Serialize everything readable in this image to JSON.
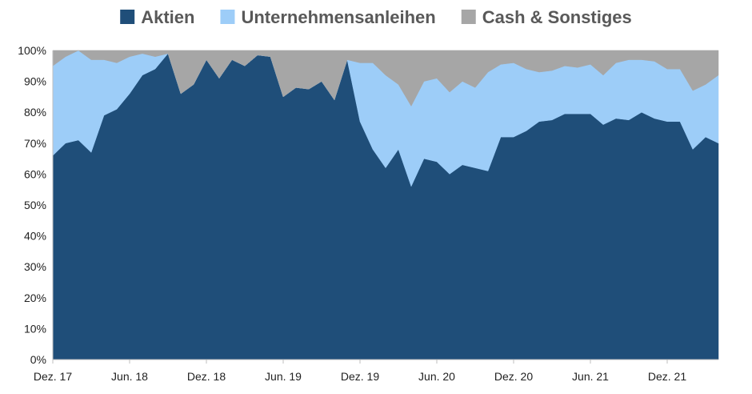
{
  "chart_data": {
    "type": "area",
    "stacked": true,
    "title": "",
    "xlabel": "",
    "ylabel": "",
    "ylim": [
      0,
      100
    ],
    "y_ticks": [
      "0%",
      "10%",
      "20%",
      "30%",
      "40%",
      "50%",
      "60%",
      "70%",
      "80%",
      "90%",
      "100%"
    ],
    "x_ticks": [
      {
        "label": "Dez. 17",
        "index": 0
      },
      {
        "label": "Jun. 18",
        "index": 6
      },
      {
        "label": "Dez. 18",
        "index": 12
      },
      {
        "label": "Jun. 19",
        "index": 18
      },
      {
        "label": "Dez. 19",
        "index": 24
      },
      {
        "label": "Jun. 20",
        "index": 30
      },
      {
        "label": "Dez. 20",
        "index": 36
      },
      {
        "label": "Jun. 21",
        "index": 42
      },
      {
        "label": "Dez. 21",
        "index": 48
      }
    ],
    "legend_position": "top",
    "series": [
      {
        "name": "Aktien",
        "color": "#1f4e79",
        "values": [
          66,
          70,
          71,
          67,
          79,
          81,
          86,
          92,
          94,
          99,
          86,
          89,
          97,
          91,
          97,
          95,
          98.5,
          98,
          85,
          88,
          87.5,
          90,
          84,
          97,
          77,
          68,
          62,
          68,
          56,
          65,
          64,
          60,
          63,
          62,
          61,
          72,
          72,
          74,
          77,
          77.5,
          79.5,
          79.5,
          79.5,
          76,
          78,
          77.5,
          80,
          78,
          77,
          77,
          68,
          72,
          70
        ]
      },
      {
        "name": "Unternehmensanleihen",
        "color": "#9dcdf8",
        "values": [
          29,
          28,
          29,
          30,
          18,
          15,
          12,
          7,
          4,
          0,
          0,
          0,
          0,
          0,
          0,
          0,
          0,
          0,
          0,
          0,
          0,
          0,
          0,
          0,
          19,
          28,
          30,
          21,
          26,
          25,
          27,
          26.5,
          27,
          26,
          32,
          23.5,
          24,
          20,
          16,
          16,
          15.5,
          15,
          16,
          16,
          18,
          19.5,
          17,
          18.5,
          17,
          17,
          19,
          17,
          22
        ]
      },
      {
        "name": "Cash & Sonstiges",
        "color": "#a6a6a6",
        "values": [
          5,
          2,
          0,
          3,
          3,
          4,
          2,
          1,
          2,
          1,
          14,
          11,
          3,
          9,
          3,
          5,
          1.5,
          2,
          15,
          12,
          12.5,
          10,
          16,
          3,
          4,
          4,
          8,
          11,
          18,
          10,
          9,
          13.5,
          10,
          12,
          7,
          4.5,
          4,
          6,
          7,
          6.5,
          5,
          5.5,
          4.5,
          8,
          4,
          3,
          3,
          3.5,
          6,
          6,
          13,
          11,
          8
        ]
      }
    ]
  }
}
